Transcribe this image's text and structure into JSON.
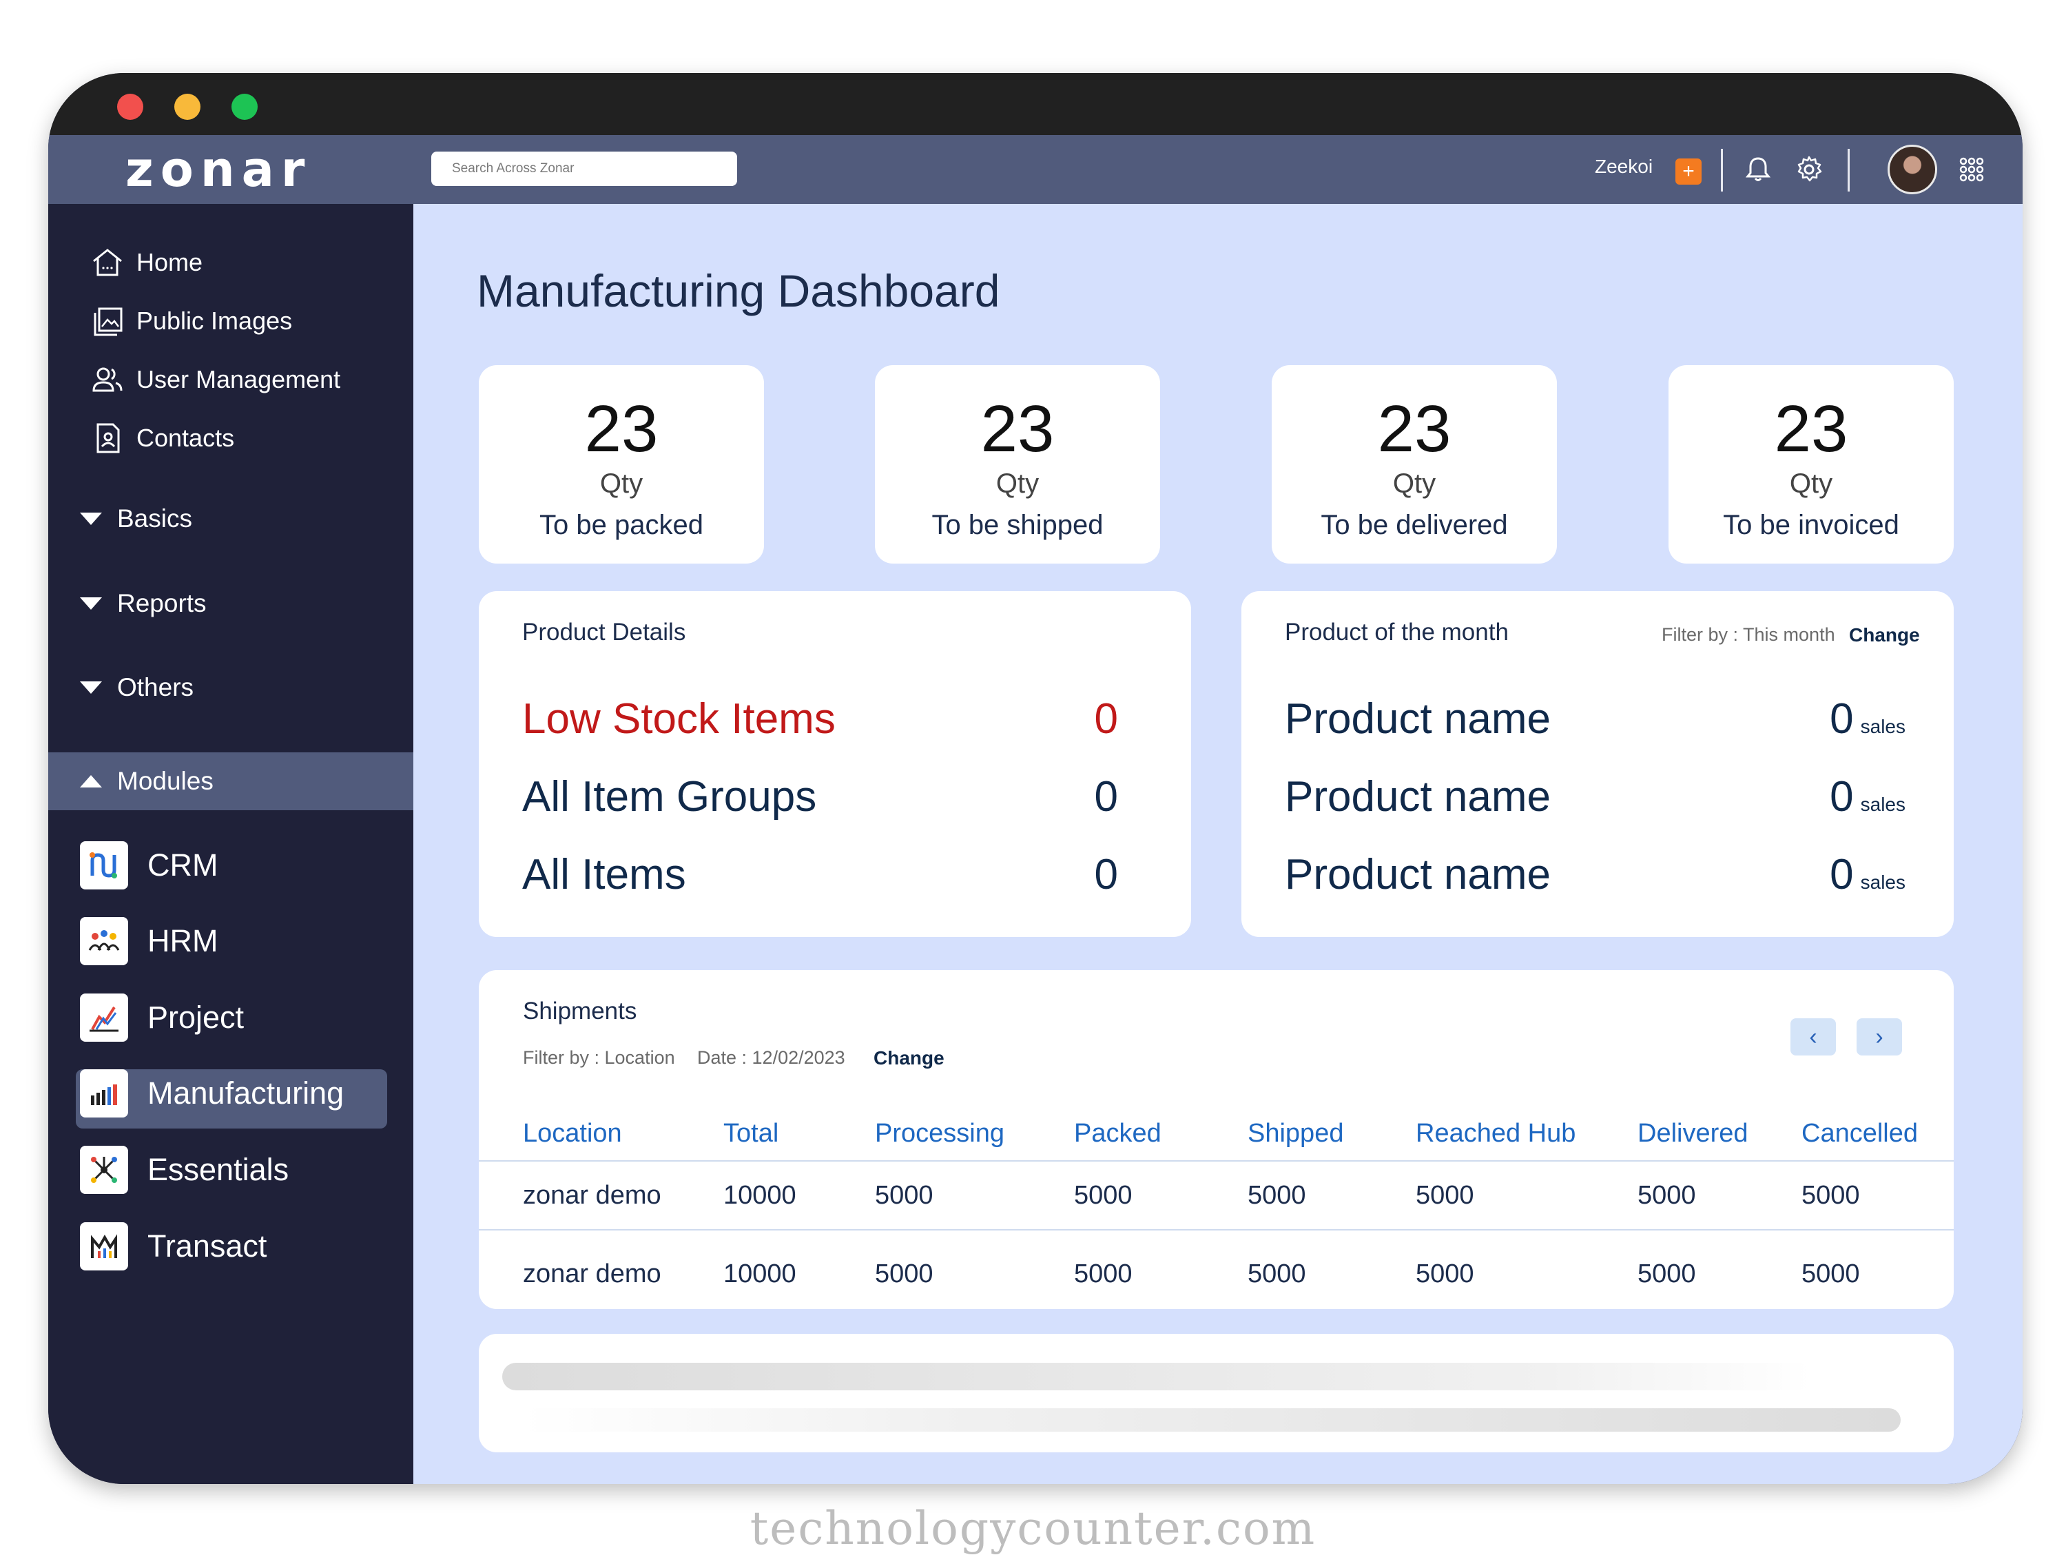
{
  "app": {
    "logo_text": "zonar"
  },
  "topbar": {
    "search_placeholder": "Search Across Zonar",
    "user_name": "Zeekoi",
    "add_label": "+"
  },
  "sidebar": {
    "links": [
      {
        "label": "Home",
        "icon": "home-icon"
      },
      {
        "label": "Public Images",
        "icon": "images-icon"
      },
      {
        "label": "User Management",
        "icon": "users-icon"
      },
      {
        "label": "Contacts",
        "icon": "contacts-icon"
      }
    ],
    "sections": [
      "Basics",
      "Reports",
      "Others",
      "Modules"
    ],
    "modules": [
      "CRM",
      "HRM",
      "Project",
      "Manufacturing",
      "Essentials",
      "Transact"
    ]
  },
  "main": {
    "title": "Manufacturing Dashboard",
    "stats": [
      {
        "value": "23",
        "unit": "Qty",
        "label": "To be packed"
      },
      {
        "value": "23",
        "unit": "Qty",
        "label": "To be shipped"
      },
      {
        "value": "23",
        "unit": "Qty",
        "label": "To be delivered"
      },
      {
        "value": "23",
        "unit": "Qty",
        "label": "To be invoiced"
      }
    ],
    "product_details": {
      "title": "Product Details",
      "rows": [
        {
          "label": "Low Stock Items",
          "value": "0"
        },
        {
          "label": "All Item Groups",
          "value": "0"
        },
        {
          "label": "All Items",
          "value": "0"
        }
      ]
    },
    "product_of_month": {
      "title": "Product of the month",
      "filter": "Filter by : This month",
      "change": "Change",
      "rows": [
        {
          "name": "Product name",
          "value": "0",
          "unit": "sales"
        },
        {
          "name": "Product name",
          "value": "0",
          "unit": "sales"
        },
        {
          "name": "Product name",
          "value": "0",
          "unit": "sales"
        }
      ]
    },
    "shipments": {
      "title": "Shipments",
      "filter_location": "Filter by : Location",
      "filter_date": "Date : 12/02/2023",
      "change": "Change",
      "prev": "‹",
      "next": "›",
      "columns": [
        "Location",
        "Total",
        "Processing",
        "Packed",
        "Shipped",
        "Reached Hub",
        "Delivered",
        "Cancelled"
      ],
      "rows": [
        [
          "zonar demo",
          "10000",
          "5000",
          "5000",
          "5000",
          "5000",
          "5000",
          "5000"
        ],
        [
          "zonar demo",
          "10000",
          "5000",
          "5000",
          "5000",
          "5000",
          "5000",
          "5000"
        ]
      ]
    }
  },
  "footer": {
    "brand": "technologycounter.com"
  },
  "colors": {
    "accent": "#1e68c2",
    "danger": "#c11919",
    "sidebar": "#1f2139",
    "topbar": "#515b7c",
    "main_bg": "#d5e0fd"
  }
}
